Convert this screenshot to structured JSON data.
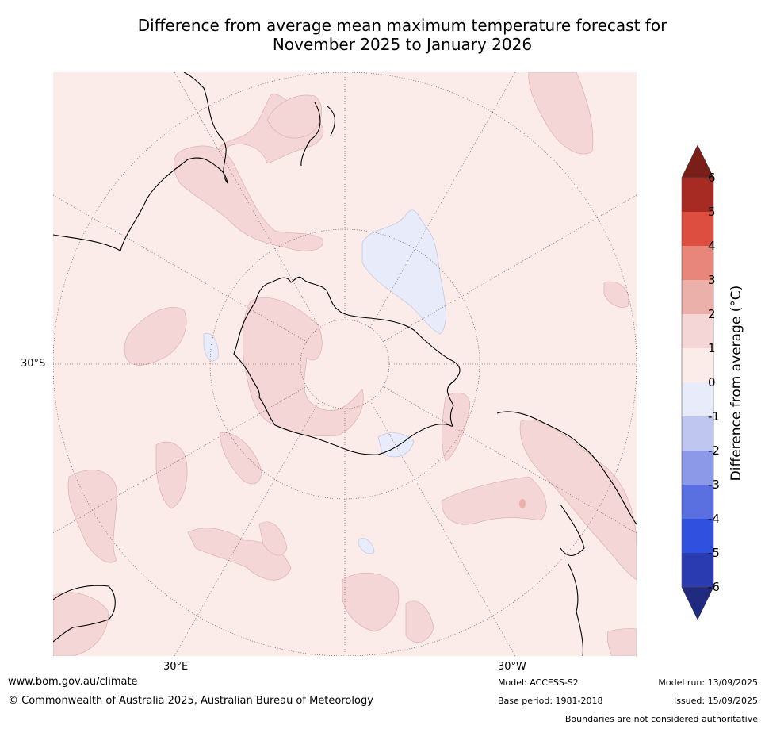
{
  "title": {
    "line1": "Difference from average mean maximum temperature forecast for",
    "line2": "November 2025 to January 2026"
  },
  "map": {
    "graticule_labels": {
      "lon_left": "30°E",
      "lon_right": "30°W",
      "lat_left": "30°S"
    },
    "colors": {
      "background": "#fbecea",
      "warm_0_1": "#fbecea",
      "warm_1_2": "#f3d6d5",
      "warm_2_3": "#ecb0aa",
      "cool_0_1": "#e8ebfa",
      "coast": "#000000",
      "graticule": "#6a3a3a"
    }
  },
  "colorbar": {
    "label": "Difference from average (°C)",
    "ticks": [
      "6",
      "5",
      "4",
      "3",
      "2",
      "1",
      "0",
      "-1",
      "-2",
      "-3",
      "-4",
      "-5",
      "-6"
    ],
    "colors": {
      "over": "#7a1e18",
      "5_6": "#a72a23",
      "4_5": "#dd4d40",
      "3_4": "#e8867c",
      "2_3": "#ecb0aa",
      "1_2": "#f3d6d5",
      "0_1": "#fbecea",
      "m1_0": "#e8ebfa",
      "m2_m1": "#bfc6f0",
      "m3_m2": "#8c99e8",
      "m4_m3": "#5a6fe0",
      "m5_m4": "#3050e0",
      "m6_m5": "#2a3ab0",
      "under": "#1f2a80"
    }
  },
  "footer": {
    "website": "www.bom.gov.au/climate",
    "copyright": "© Commonwealth of Australia 2025, Australian Bureau of Meteorology",
    "model": "Model: ACCESS-S2",
    "base_period": "Base period: 1981-2018",
    "model_run": "Model run: 13/09/2025",
    "issued": "Issued: 15/09/2025",
    "disclaimer": "Boundaries are not considered authoritative"
  }
}
